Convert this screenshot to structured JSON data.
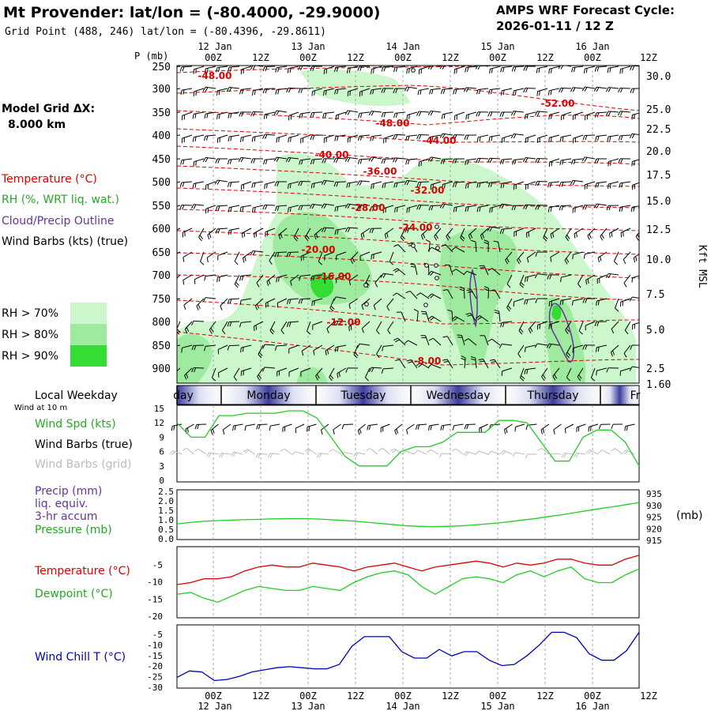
{
  "header": {
    "station_title": "Mt Provender:  lat/lon = (-80.4000, -29.9000)",
    "grid_point": "Grid Point (488, 246) lat/lon = (-80.4396, -29.8611)",
    "forecast_cycle_label": "AMPS WRF Forecast Cycle:",
    "forecast_cycle_value": "2026-01-11 / 12  Z"
  },
  "model": {
    "grid_label": "Model Grid ΔX:",
    "grid_value": "8.000 km"
  },
  "time_axis": {
    "ticks": [
      "00Z",
      "12Z",
      "00Z",
      "12Z",
      "00Z",
      "12Z",
      "00Z",
      "12Z",
      "00Z",
      "12Z"
    ],
    "top_dates": [
      "12 Jan",
      "13 Jan",
      "14 Jan",
      "15 Jan",
      "16 Jan"
    ],
    "bottom_dates": [
      "12 Jan",
      "13 Jan",
      "14 Jan",
      "15 Jan",
      "16 Jan"
    ],
    "weekdays": [
      "day",
      "Monday",
      "Tuesday",
      "Wednesday",
      "Thursday",
      "Fr"
    ]
  },
  "legend": {
    "temperature": "Temperature (°C)",
    "rh": "RH (%, WRT liq. wat.)",
    "cloud": "Cloud/Precip Outline",
    "wind_barbs": "Wind Barbs (kts) (true)",
    "rh70": "RH > 70%",
    "rh80": "RH > 80%",
    "rh90": "RH > 90%",
    "colors": {
      "temperature": "#dd0000",
      "rh70": "#ccf7cc",
      "rh80": "#9eea9e",
      "rh90": "#33dd33",
      "cloud": "#663399",
      "wind_chill": "#0000bb",
      "pressure": "#22cc22"
    }
  },
  "chart_data": [
    {
      "type": "heatmap",
      "ylabel": "P (mb)",
      "right_label": "Kft MSL",
      "y_ticks": [
        "250",
        "300",
        "350",
        "400",
        "450",
        "500",
        "550",
        "600",
        "650",
        "700",
        "750",
        "800",
        "850",
        "900"
      ],
      "right_ticks": [
        "30.0",
        "25.0",
        "22.5",
        "20.0",
        "17.5",
        "15.0",
        "12.5",
        "10.0",
        "7.5",
        "5.0",
        "2.5",
        "1.60"
      ],
      "temperature_contours": [
        "-48.00",
        "-52.00",
        "-48.00",
        "-44.00",
        "-40.00",
        "-36.00",
        "-32.00",
        "-28.00",
        "-24.00",
        "-20.00",
        "-16.00",
        "-12.00",
        "-8.00"
      ]
    },
    {
      "type": "line",
      "title": "Local Weekday",
      "subtitle": "Wind at 10 m",
      "series_labels": {
        "speed": "Wind Spd (kts)",
        "barbs_true": "Wind Barbs (true)",
        "barbs_grid": "Wind Barbs (grid)"
      },
      "y_ticks": [
        "15",
        "12",
        "9",
        "6",
        "3",
        "0"
      ],
      "ylim": [
        0,
        15
      ],
      "values": [
        12,
        9,
        9,
        13.5,
        13.5,
        14,
        14,
        14,
        14.5,
        14.5,
        13,
        9,
        5,
        3,
        3,
        3,
        6,
        7,
        7,
        8,
        10,
        10,
        10,
        12.5,
        12.5,
        12,
        8,
        4,
        4,
        9,
        10.5,
        10.5,
        8,
        3
      ]
    },
    {
      "type": "line",
      "series_labels": {
        "precip": "Precip (mm)",
        "precip2": "liq. equiv.",
        "precip3": "3-hr accum",
        "pressure": "Pressure (mb)"
      },
      "y_ticks_left": [
        "2.5",
        "2.0",
        "1.5",
        "1.0",
        "0.5",
        "0.0"
      ],
      "y_ticks_right": [
        "935",
        "930",
        "925",
        "920",
        "915"
      ],
      "unit_right": "(mb)",
      "ylim_right": [
        915,
        935
      ],
      "pressure": [
        922.2,
        922.8,
        923.3,
        923.6,
        923.8,
        924.0,
        924.1,
        924.3,
        924.4,
        924.5,
        924.5,
        924.3,
        924.0,
        923.7,
        923.3,
        922.8,
        922.3,
        921.8,
        921.3,
        921.1,
        921.0,
        921.1,
        921.3,
        921.7,
        922.1,
        922.6,
        923.2,
        923.9,
        924.6,
        925.4,
        926.2,
        927.1,
        928.0,
        928.9,
        929.7,
        930.6,
        931.5
      ]
    },
    {
      "type": "line",
      "series_labels": {
        "temperature": "Temperature (°C)",
        "dewpoint": "Dewpoint (°C)"
      },
      "y_ticks": [
        "-5",
        "-10",
        "-15",
        "-20"
      ],
      "ylim": [
        -20,
        -2
      ],
      "temperature": [
        -11.5,
        -11,
        -10,
        -10,
        -9.5,
        -8,
        -7,
        -6.5,
        -7,
        -7,
        -6,
        -6.5,
        -7,
        -8,
        -7,
        -6.5,
        -6,
        -7,
        -8,
        -7,
        -6.5,
        -6,
        -5.5,
        -6,
        -7,
        -6,
        -6.5,
        -6,
        -5,
        -5,
        -6,
        -6.5,
        -6.5,
        -5,
        -4
      ],
      "dewpoint": [
        -14,
        -13.5,
        -15,
        -16,
        -14.5,
        -13,
        -12,
        -12.5,
        -13,
        -13,
        -12,
        -12.5,
        -13,
        -11,
        -9.5,
        -8.5,
        -8,
        -9,
        -12,
        -14,
        -12,
        -10,
        -9.5,
        -10,
        -11,
        -9,
        -8,
        -9.5,
        -8,
        -7,
        -10,
        -11,
        -11,
        -9,
        -7.5
      ]
    },
    {
      "type": "line",
      "series_labels": {
        "wind_chill": "Wind Chill T (°C)"
      },
      "y_ticks": [
        "-5",
        "-10",
        "-15",
        "-20",
        "-25",
        "-30"
      ],
      "ylim": [
        -30,
        -2
      ],
      "values": [
        -25,
        -22,
        -22.5,
        -26.5,
        -26,
        -24.5,
        -22.5,
        -21.5,
        -20.5,
        -20,
        -20.5,
        -21,
        -21,
        -19,
        -10.5,
        -6,
        -6,
        -6,
        -13,
        -16,
        -16,
        -12,
        -15,
        -13,
        -13,
        -17,
        -19.5,
        -19,
        -15,
        -10,
        -4,
        -4,
        -6.5,
        -14,
        -17,
        -17,
        -12.5,
        -4
      ]
    }
  ]
}
